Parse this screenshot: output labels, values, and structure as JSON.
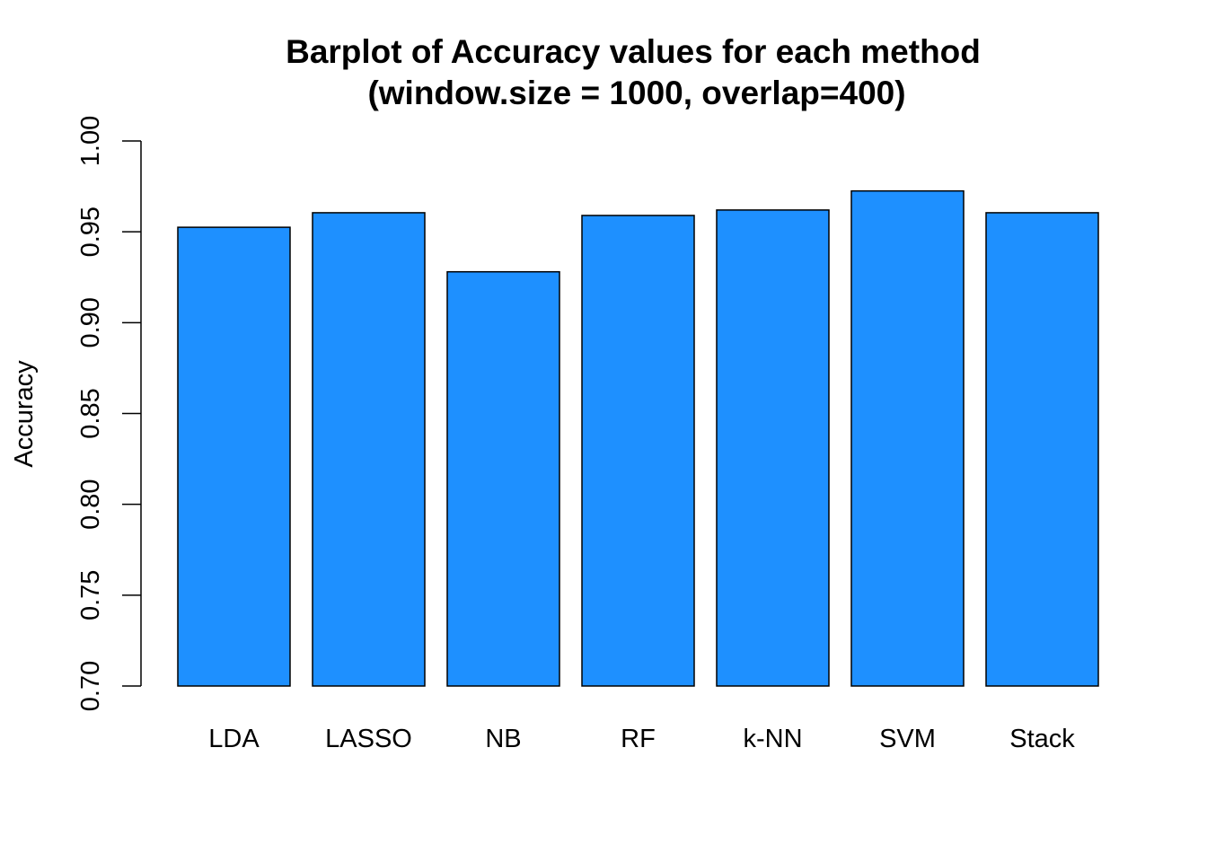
{
  "chart_data": {
    "type": "bar",
    "title": "Barplot of Accuracy values for each method",
    "subtitle": "(window.size = 1000, overlap=400)",
    "xlabel": "",
    "ylabel": "Accuracy",
    "categories": [
      "LDA",
      "LASSO",
      "NB",
      "RF",
      "k-NN",
      "SVM",
      "Stack"
    ],
    "values": [
      0.9525,
      0.9605,
      0.928,
      0.959,
      0.962,
      0.9725,
      0.9605
    ],
    "ylim": [
      0.7,
      1.0
    ],
    "yticks": [
      "0.70",
      "0.75",
      "0.80",
      "0.85",
      "0.90",
      "0.95",
      "1.00"
    ],
    "grid": false,
    "bar_color": "#1E90FF",
    "bar_border_color": "#000000"
  }
}
